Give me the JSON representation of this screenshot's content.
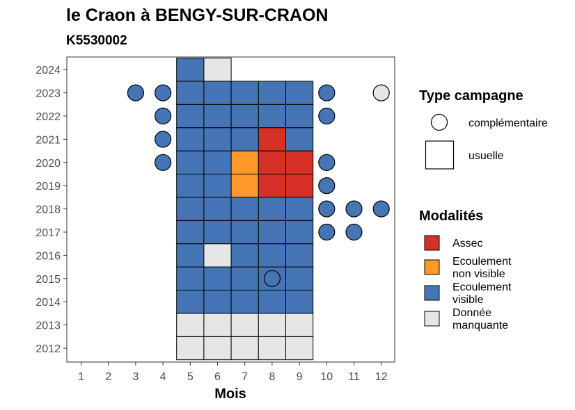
{
  "chart_data": {
    "type": "heatmap",
    "title": "le Craon à BENGY-SUR-CRAON",
    "subtitle": "K5530002",
    "xlabel": "Mois",
    "ylabel": "",
    "x_ticks": [
      1,
      2,
      3,
      4,
      5,
      6,
      7,
      8,
      9,
      10,
      11,
      12
    ],
    "y_ticks": [
      2012,
      2013,
      2014,
      2015,
      2016,
      2017,
      2018,
      2019,
      2020,
      2021,
      2022,
      2023,
      2024
    ],
    "grid": false,
    "legend_position": "right",
    "modalites": [
      {
        "key": "assec",
        "label_lines": [
          "Assec"
        ],
        "color": "#d73027"
      },
      {
        "key": "nonvisible",
        "label_lines": [
          "Ecoulement",
          "non visible"
        ],
        "color": "#fe9929"
      },
      {
        "key": "visible",
        "label_lines": [
          "Ecoulement",
          "visible"
        ],
        "color": "#4575b4"
      },
      {
        "key": "manquante",
        "label_lines": [
          "Donnée",
          "manquante"
        ],
        "color": "#e6e6e6"
      }
    ],
    "type_campagne_title": "Type campagne",
    "type_campagne": [
      {
        "key": "complementaire",
        "label": "complémentaire",
        "shape": "circle"
      },
      {
        "key": "usuelle",
        "label": "usuelle",
        "shape": "square"
      }
    ],
    "modalites_title": "Modalités",
    "usuelle": [
      {
        "year": 2012,
        "month": 5,
        "mod": "manquante"
      },
      {
        "year": 2012,
        "month": 6,
        "mod": "manquante"
      },
      {
        "year": 2012,
        "month": 7,
        "mod": "manquante"
      },
      {
        "year": 2012,
        "month": 8,
        "mod": "manquante"
      },
      {
        "year": 2012,
        "month": 9,
        "mod": "manquante"
      },
      {
        "year": 2013,
        "month": 5,
        "mod": "manquante"
      },
      {
        "year": 2013,
        "month": 6,
        "mod": "manquante"
      },
      {
        "year": 2013,
        "month": 7,
        "mod": "manquante"
      },
      {
        "year": 2013,
        "month": 8,
        "mod": "manquante"
      },
      {
        "year": 2013,
        "month": 9,
        "mod": "manquante"
      },
      {
        "year": 2014,
        "month": 5,
        "mod": "visible"
      },
      {
        "year": 2014,
        "month": 6,
        "mod": "visible"
      },
      {
        "year": 2014,
        "month": 7,
        "mod": "visible"
      },
      {
        "year": 2014,
        "month": 8,
        "mod": "visible"
      },
      {
        "year": 2014,
        "month": 9,
        "mod": "visible"
      },
      {
        "year": 2015,
        "month": 5,
        "mod": "visible"
      },
      {
        "year": 2015,
        "month": 6,
        "mod": "visible"
      },
      {
        "year": 2015,
        "month": 7,
        "mod": "visible"
      },
      {
        "year": 2015,
        "month": 8,
        "mod": "visible"
      },
      {
        "year": 2015,
        "month": 9,
        "mod": "visible"
      },
      {
        "year": 2016,
        "month": 5,
        "mod": "visible"
      },
      {
        "year": 2016,
        "month": 6,
        "mod": "manquante"
      },
      {
        "year": 2016,
        "month": 7,
        "mod": "visible"
      },
      {
        "year": 2016,
        "month": 8,
        "mod": "visible"
      },
      {
        "year": 2016,
        "month": 9,
        "mod": "visible"
      },
      {
        "year": 2017,
        "month": 5,
        "mod": "visible"
      },
      {
        "year": 2017,
        "month": 6,
        "mod": "visible"
      },
      {
        "year": 2017,
        "month": 7,
        "mod": "visible"
      },
      {
        "year": 2017,
        "month": 8,
        "mod": "visible"
      },
      {
        "year": 2017,
        "month": 9,
        "mod": "visible"
      },
      {
        "year": 2018,
        "month": 5,
        "mod": "visible"
      },
      {
        "year": 2018,
        "month": 6,
        "mod": "visible"
      },
      {
        "year": 2018,
        "month": 7,
        "mod": "visible"
      },
      {
        "year": 2018,
        "month": 8,
        "mod": "visible"
      },
      {
        "year": 2018,
        "month": 9,
        "mod": "visible"
      },
      {
        "year": 2019,
        "month": 5,
        "mod": "visible"
      },
      {
        "year": 2019,
        "month": 6,
        "mod": "visible"
      },
      {
        "year": 2019,
        "month": 7,
        "mod": "nonvisible"
      },
      {
        "year": 2019,
        "month": 8,
        "mod": "assec"
      },
      {
        "year": 2019,
        "month": 9,
        "mod": "assec"
      },
      {
        "year": 2020,
        "month": 5,
        "mod": "visible"
      },
      {
        "year": 2020,
        "month": 6,
        "mod": "visible"
      },
      {
        "year": 2020,
        "month": 7,
        "mod": "nonvisible"
      },
      {
        "year": 2020,
        "month": 8,
        "mod": "assec"
      },
      {
        "year": 2020,
        "month": 9,
        "mod": "assec"
      },
      {
        "year": 2021,
        "month": 5,
        "mod": "visible"
      },
      {
        "year": 2021,
        "month": 6,
        "mod": "visible"
      },
      {
        "year": 2021,
        "month": 7,
        "mod": "visible"
      },
      {
        "year": 2021,
        "month": 8,
        "mod": "assec"
      },
      {
        "year": 2021,
        "month": 9,
        "mod": "visible"
      },
      {
        "year": 2022,
        "month": 5,
        "mod": "visible"
      },
      {
        "year": 2022,
        "month": 6,
        "mod": "visible"
      },
      {
        "year": 2022,
        "month": 7,
        "mod": "visible"
      },
      {
        "year": 2022,
        "month": 8,
        "mod": "visible"
      },
      {
        "year": 2022,
        "month": 9,
        "mod": "visible"
      },
      {
        "year": 2023,
        "month": 5,
        "mod": "visible"
      },
      {
        "year": 2023,
        "month": 6,
        "mod": "visible"
      },
      {
        "year": 2023,
        "month": 7,
        "mod": "visible"
      },
      {
        "year": 2023,
        "month": 8,
        "mod": "visible"
      },
      {
        "year": 2023,
        "month": 9,
        "mod": "visible"
      },
      {
        "year": 2024,
        "month": 5,
        "mod": "visible"
      },
      {
        "year": 2024,
        "month": 6,
        "mod": "manquante"
      }
    ],
    "complementaire": [
      {
        "year": 2015,
        "month": 8,
        "mod": "visible"
      },
      {
        "year": 2017,
        "month": 10,
        "mod": "visible"
      },
      {
        "year": 2017,
        "month": 11,
        "mod": "visible"
      },
      {
        "year": 2018,
        "month": 10,
        "mod": "visible"
      },
      {
        "year": 2018,
        "month": 11,
        "mod": "visible"
      },
      {
        "year": 2018,
        "month": 12,
        "mod": "visible"
      },
      {
        "year": 2019,
        "month": 10,
        "mod": "visible"
      },
      {
        "year": 2020,
        "month": 4,
        "mod": "visible"
      },
      {
        "year": 2020,
        "month": 10,
        "mod": "visible"
      },
      {
        "year": 2021,
        "month": 4,
        "mod": "visible"
      },
      {
        "year": 2022,
        "month": 4,
        "mod": "visible"
      },
      {
        "year": 2022,
        "month": 10,
        "mod": "visible"
      },
      {
        "year": 2023,
        "month": 3,
        "mod": "visible"
      },
      {
        "year": 2023,
        "month": 4,
        "mod": "visible"
      },
      {
        "year": 2023,
        "month": 10,
        "mod": "visible"
      },
      {
        "year": 2023,
        "month": 12,
        "mod": "manquante"
      }
    ]
  }
}
